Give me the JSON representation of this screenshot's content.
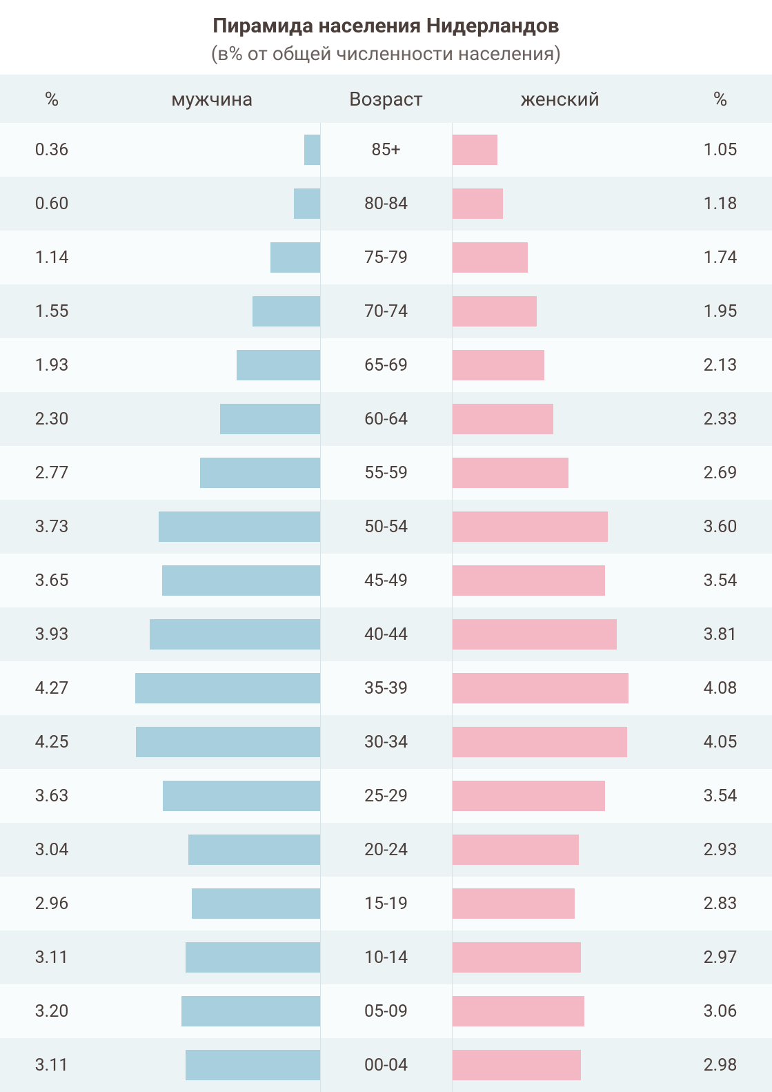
{
  "title": "Пирамида населения Нидерландов",
  "subtitle": "(в% от общей численности населения)",
  "title_color": "#4a3e3a",
  "subtitle_color": "#6b625d",
  "text_color": "#4a3e3a",
  "header_bg": "#ecf3f5",
  "row_bg_even": "#ecf3f5",
  "row_bg_odd": "#f9fcfc",
  "male_bar_color": "#a7cfdd",
  "female_bar_color": "#f3b8c4",
  "divider_color": "#d8e3e7",
  "bar_max_value": 5.0,
  "title_fontsize": 30,
  "subtitle_fontsize": 28,
  "header_fontsize": 28,
  "cell_fontsize": 25,
  "columns": {
    "pct_left": "%",
    "male": "мужчина",
    "age": "Возраст",
    "female": "женский",
    "pct_right": "%"
  },
  "rows": [
    {
      "age": "85+",
      "male": 0.36,
      "female": 1.05
    },
    {
      "age": "80-84",
      "male": 0.6,
      "female": 1.18
    },
    {
      "age": "75-79",
      "male": 1.14,
      "female": 1.74
    },
    {
      "age": "70-74",
      "male": 1.55,
      "female": 1.95
    },
    {
      "age": "65-69",
      "male": 1.93,
      "female": 2.13
    },
    {
      "age": "60-64",
      "male": 2.3,
      "female": 2.33
    },
    {
      "age": "55-59",
      "male": 2.77,
      "female": 2.69
    },
    {
      "age": "50-54",
      "male": 3.73,
      "female": 3.6
    },
    {
      "age": "45-49",
      "male": 3.65,
      "female": 3.54
    },
    {
      "age": "40-44",
      "male": 3.93,
      "female": 3.81
    },
    {
      "age": "35-39",
      "male": 4.27,
      "female": 4.08
    },
    {
      "age": "30-34",
      "male": 4.25,
      "female": 4.05
    },
    {
      "age": "25-29",
      "male": 3.63,
      "female": 3.54
    },
    {
      "age": "20-24",
      "male": 3.04,
      "female": 2.93
    },
    {
      "age": "15-19",
      "male": 2.96,
      "female": 2.83
    },
    {
      "age": "10-14",
      "male": 3.11,
      "female": 2.97
    },
    {
      "age": "05-09",
      "male": 3.2,
      "female": 3.06
    },
    {
      "age": "00-04",
      "male": 3.11,
      "female": 2.98
    }
  ]
}
